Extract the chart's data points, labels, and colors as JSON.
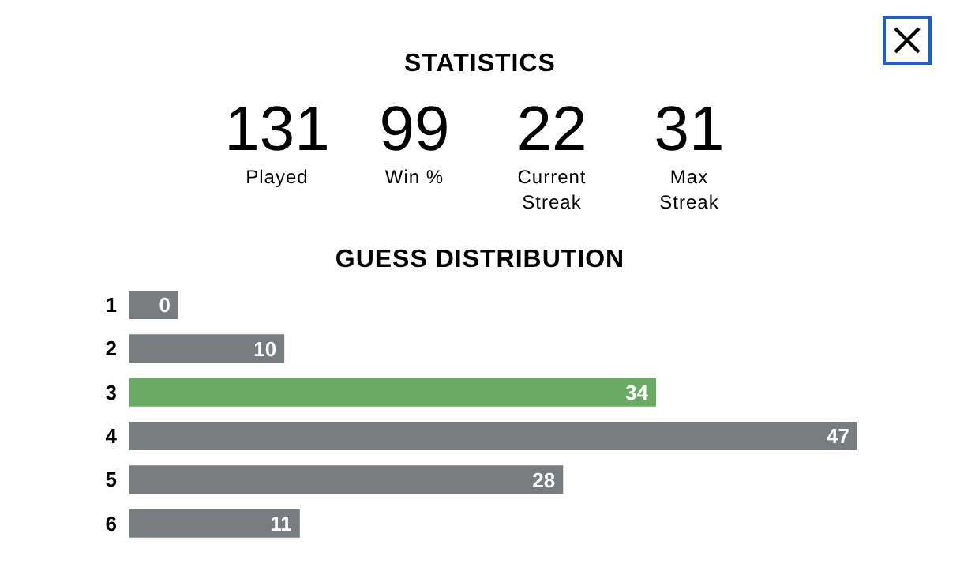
{
  "chart_data": {
    "type": "bar",
    "orientation": "horizontal",
    "title": "GUESS DISTRIBUTION",
    "annotations": [
      "STATISTICS",
      "131",
      "Played",
      "99",
      "Win %",
      "22",
      "Current Streak",
      "31",
      "Max Streak"
    ],
    "categories": [
      "1",
      "2",
      "3",
      "4",
      "5",
      "6"
    ],
    "values": [
      0,
      10,
      34,
      47,
      28,
      11
    ],
    "colors": [
      "#787c7e",
      "#787c7e",
      "#6aaa64",
      "#787c7e",
      "#787c7e",
      "#787c7e"
    ],
    "data_labels": true
  }
}
